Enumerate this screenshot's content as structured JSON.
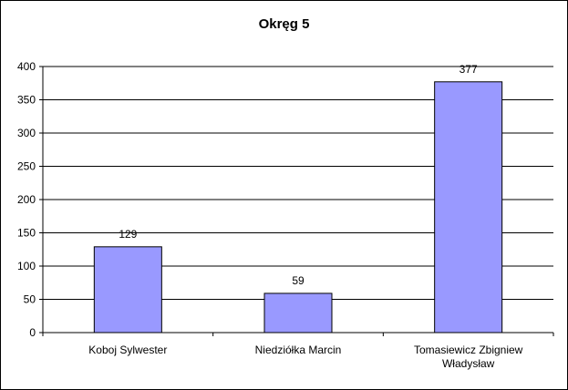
{
  "chart_data": {
    "type": "bar",
    "title": "Okręg 5",
    "xlabel": "",
    "ylabel": "",
    "categories": [
      [
        "Koboj Sylwester"
      ],
      [
        "Niedziółka Marcin"
      ],
      [
        "Tomasiewicz Zbigniew",
        "Władysław"
      ]
    ],
    "values": [
      129,
      59,
      377
    ],
    "data_labels": [
      "129",
      "59",
      "377"
    ],
    "ylim": [
      0,
      400
    ],
    "yticks": [
      0,
      50,
      100,
      150,
      200,
      250,
      300,
      350,
      400
    ],
    "ytick_labels": [
      "0",
      "50",
      "100",
      "150",
      "200",
      "250",
      "300",
      "350",
      "400"
    ],
    "grid": true,
    "legend": "none",
    "colors": {
      "bar_fill": "#9999ff",
      "bar_stroke": "#000000",
      "grid": "#000000",
      "background": "#ffffff"
    }
  }
}
